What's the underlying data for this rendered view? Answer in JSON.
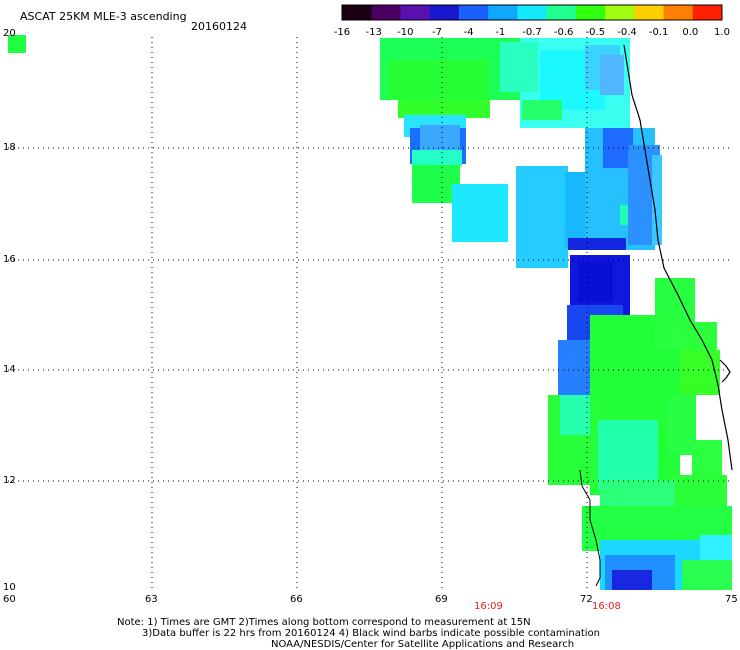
{
  "header": {
    "title": "ASCAT 25KM MLE-3 ascending",
    "date": "20160124"
  },
  "colorbar": {
    "labels": [
      "-16",
      "-13",
      "-10",
      "-7",
      "-4",
      "-1",
      "-0.7",
      "-0.6",
      "-0.5",
      "-0.4",
      "-0.1",
      "0.0",
      "1.0"
    ],
    "colors": [
      "#1a0010",
      "#4a0060",
      "#5a10b0",
      "#1818d0",
      "#1a60ff",
      "#10a8ff",
      "#14e8ff",
      "#20ff90",
      "#30ff10",
      "#a0ff10",
      "#ffd000",
      "#ff8000",
      "#ff2000"
    ]
  },
  "map": {
    "x_ticks": [
      "60",
      "63",
      "66",
      "69",
      "72",
      "75"
    ],
    "y_ticks": [
      "20",
      "18",
      "16",
      "14",
      "12",
      "10"
    ],
    "times": [
      "16:09",
      "16:08"
    ]
  },
  "notes": {
    "line1": "Note: 1) Times are GMT 2)Times along bottom correspond to measurement at 15N",
    "line2": "3)Data buffer is 22 hrs from 20160124 4) Black wind barbs indicate possible contamination",
    "line3": "NOAA/NESDIS/Center for Satellite Applications and Research"
  }
}
